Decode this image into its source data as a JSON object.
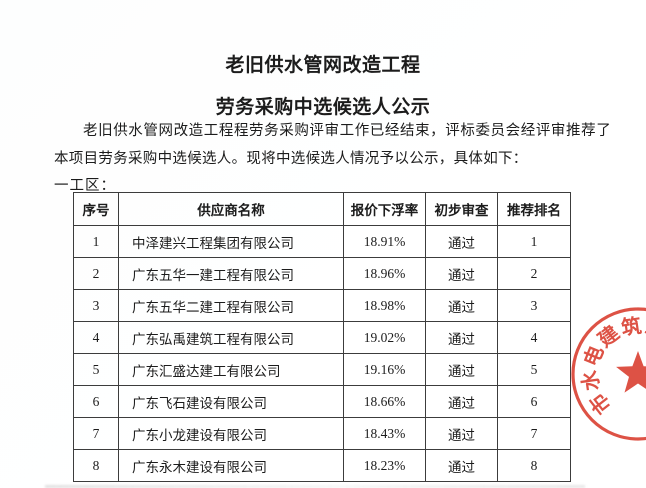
{
  "page": {
    "title_line1": "老旧供水管网改造工程",
    "title_line2": "劳务采购中选候选人公示",
    "intro": "老旧供水管网改造工程程劳务采购评审工作已经结束，评标委员会经评审推荐了本项目劳务采购中选候选人。现将中选候选人情况予以公示，具体如下：",
    "section_label": "一工区："
  },
  "table": {
    "headers": [
      "序号",
      "供应商名称",
      "报价下浮率",
      "初步审查",
      "推荐排名"
    ],
    "rows": [
      {
        "seq": "1",
        "supplier": "中泽建兴工程集团有限公司",
        "rate": "18.91%",
        "review": "通过",
        "rank": "1"
      },
      {
        "seq": "2",
        "supplier": "广东五华一建工程有限公司",
        "rate": "18.96%",
        "review": "通过",
        "rank": "2"
      },
      {
        "seq": "3",
        "supplier": "广东五华二建工程有限公司",
        "rate": "18.98%",
        "review": "通过",
        "rank": "3"
      },
      {
        "seq": "4",
        "supplier": "广东弘禹建筑工程有限公司",
        "rate": "19.02%",
        "review": "通过",
        "rank": "4"
      },
      {
        "seq": "5",
        "supplier": "广东汇盛达建工有限公司",
        "rate": "19.16%",
        "review": "通过",
        "rank": "5"
      },
      {
        "seq": "6",
        "supplier": "广东飞石建设有限公司",
        "rate": "18.66%",
        "review": "通过",
        "rank": "6"
      },
      {
        "seq": "7",
        "supplier": "广东小龙建设有限公司",
        "rate": "18.43%",
        "review": "通过",
        "rank": "7"
      },
      {
        "seq": "8",
        "supplier": "广东永木建设有限公司",
        "rate": "18.23%",
        "review": "通过",
        "rank": "8"
      }
    ]
  },
  "stamp": {
    "arc_text": "市水电建筑工程",
    "color": "#d93a2b"
  }
}
